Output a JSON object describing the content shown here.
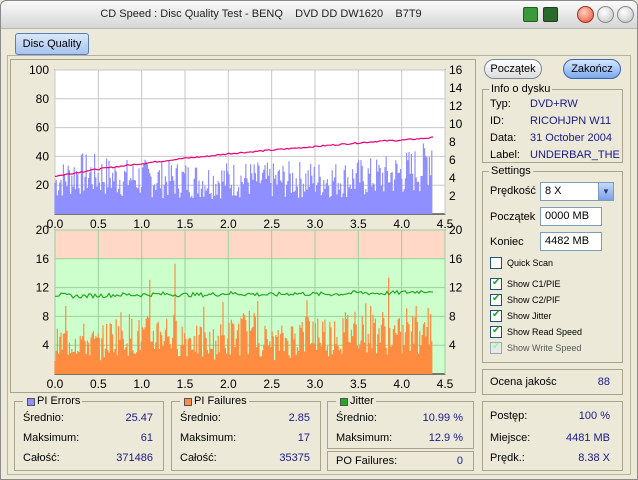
{
  "window": {
    "title": "CD Speed : Disc Quality Test - BENQ    DVD DD DW1620    B7T9"
  },
  "tab": {
    "label": "Disc Quality"
  },
  "buttons": {
    "start": "Początek",
    "stop": "Zakończ"
  },
  "info": {
    "title": "Info o dysku",
    "rows": [
      {
        "label": "Typ:",
        "value": "DVD+RW"
      },
      {
        "label": "ID:",
        "value": "RICOHJPN W11"
      },
      {
        "label": "Data:",
        "value": "31 October 2004"
      },
      {
        "label": "Label:",
        "value": "UNDERBAR_THE"
      }
    ]
  },
  "settings": {
    "title": "Settings",
    "speed_label": "Prędkość",
    "speed_value": "8 X",
    "start_label": "Początek",
    "start_value": "0000 MB",
    "end_label": "Koniec",
    "end_value": "4482 MB",
    "checks": [
      {
        "label": "Quick Scan",
        "checked": false,
        "enabled": true
      },
      {
        "label": "Show C1/PIE",
        "checked": true,
        "enabled": true
      },
      {
        "label": "Show C2/PIF",
        "checked": true,
        "enabled": true
      },
      {
        "label": "Show Jitter",
        "checked": true,
        "enabled": true
      },
      {
        "label": "Show Read Speed",
        "checked": true,
        "enabled": true
      },
      {
        "label": "Show Write Speed",
        "checked": true,
        "enabled": false
      }
    ]
  },
  "quality": {
    "label": "Ocena jakośc",
    "value": "88"
  },
  "progress": {
    "rows": [
      {
        "label": "Postęp:",
        "value": "100 %"
      },
      {
        "label": "Miejsce:",
        "value": "4481 MB"
      },
      {
        "label": "Prędk.:",
        "value": "8.38 X"
      }
    ]
  },
  "stats": {
    "pi_errors": {
      "title": "PI Errors",
      "color": "#8f8fff",
      "rows": [
        {
          "label": "Średnio:",
          "value": "25.47"
        },
        {
          "label": "Maksimum:",
          "value": "61"
        },
        {
          "label": "Całość:",
          "value": "371486"
        }
      ]
    },
    "pi_failures": {
      "title": "PI Failures",
      "color": "#ff8c40",
      "rows": [
        {
          "label": "Średnio:",
          "value": "2.85"
        },
        {
          "label": "Maksimum:",
          "value": "17"
        },
        {
          "label": "Całość:",
          "value": "35375"
        }
      ]
    },
    "jitter": {
      "title": "Jitter",
      "color": "#22aa22",
      "rows": [
        {
          "label": "Średnio:",
          "value": "10.99 %"
        },
        {
          "label": "Maksimum:",
          "value": "12.9 %"
        }
      ]
    },
    "po_failures": {
      "label": "PO Failures:",
      "value": "0"
    }
  },
  "chart_data": [
    {
      "type": "area",
      "x": [
        0.0,
        0.25,
        0.5,
        0.75,
        1.0,
        1.25,
        1.5,
        1.75,
        2.0,
        2.25,
        2.5,
        2.75,
        3.0,
        3.25,
        3.5,
        3.75,
        4.0,
        4.25,
        4.37
      ],
      "series": [
        {
          "name": "PI Errors",
          "color": "#8f8fff",
          "axis": "left",
          "values": [
            22,
            28,
            27,
            25,
            25,
            24,
            24,
            23,
            24,
            24,
            23,
            24,
            24,
            24,
            25,
            26,
            28,
            32,
            48
          ]
        },
        {
          "name": "Read Speed",
          "color": "#e8007a",
          "axis": "right",
          "type": "line",
          "values": [
            4.2,
            4.6,
            5.0,
            5.3,
            5.6,
            5.9,
            6.2,
            6.4,
            6.7,
            6.9,
            7.1,
            7.3,
            7.5,
            7.7,
            7.9,
            8.1,
            8.2,
            8.4,
            8.5
          ]
        }
      ],
      "xlim": [
        0.0,
        4.5
      ],
      "ylim": [
        0,
        100
      ],
      "y2lim": [
        0,
        16
      ],
      "xticks": [
        "0.0",
        "0.5",
        "1.0",
        "1.5",
        "2.0",
        "2.5",
        "3.0",
        "3.5",
        "4.0",
        "4.5"
      ],
      "yticks": [
        "20",
        "40",
        "60",
        "80",
        "100"
      ],
      "y2ticks": [
        "2",
        "4",
        "6",
        "8",
        "10",
        "12",
        "14",
        "16"
      ],
      "grid": true
    },
    {
      "type": "area",
      "x": [
        0.0,
        0.25,
        0.5,
        0.75,
        1.0,
        1.25,
        1.5,
        1.75,
        2.0,
        2.25,
        2.5,
        2.75,
        3.0,
        3.25,
        3.5,
        3.75,
        4.0,
        4.25,
        4.37
      ],
      "series": [
        {
          "name": "PI Failures",
          "color": "#ff8c40",
          "axis": "left",
          "values": [
            4,
            5,
            4,
            6,
            5,
            6,
            5,
            4,
            5,
            6,
            4,
            5,
            6,
            5,
            7,
            6,
            5,
            6,
            7
          ]
        },
        {
          "name": "Jitter",
          "color": "#22aa22",
          "axis": "right",
          "type": "line",
          "values": [
            11.0,
            10.8,
            10.9,
            11.0,
            11.0,
            11.1,
            11.0,
            11.0,
            11.2,
            11.1,
            11.0,
            11.2,
            11.1,
            11.1,
            11.3,
            11.2,
            11.3,
            11.5,
            11.6
          ]
        }
      ],
      "xlim": [
        0.0,
        4.5
      ],
      "ylim": [
        0,
        20
      ],
      "y2lim": [
        0,
        20
      ],
      "xticks": [
        "0.0",
        "0.5",
        "1.0",
        "1.5",
        "2.0",
        "2.5",
        "3.0",
        "3.5",
        "4.0",
        "4.5"
      ],
      "yticks": [
        "4",
        "8",
        "12",
        "16",
        "20"
      ],
      "y2ticks": [
        "4",
        "8",
        "12",
        "16",
        "20"
      ],
      "grid": true
    }
  ]
}
